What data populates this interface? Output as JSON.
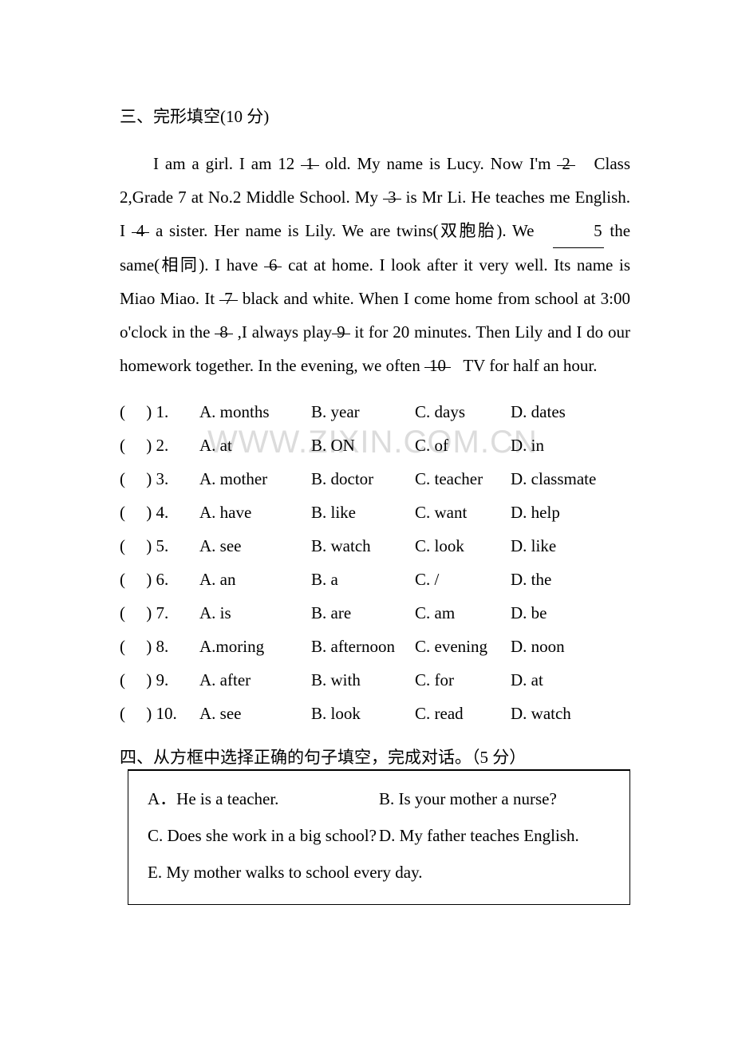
{
  "section3": {
    "title": "三、完形填空(10 分)",
    "passage": {
      "p1a": "I am a girl. I am 12 ",
      "b1": "1",
      "p1b": " old. My name is Lucy. Now I'm ",
      "b2": "2",
      "p1c": " Class 2,Grade 7 at No.2 Middle School. My ",
      "b3": "3",
      "p1d": " is Mr Li. He teaches me English. I ",
      "b4": "4",
      "p1e": " a sister. Her name is Lily. We are twins(双胞胎). We ",
      "b5": "5",
      "p1f": " the same(相同). I have ",
      "b6": "6",
      "p1g": " cat at home. I look after it very well. Its name is Miao Miao. It ",
      "b7": "7",
      "p1h": " black and white. When I come home from school at 3:00 o'clock in the ",
      "b8": "8",
      "p1i": " ,I always play",
      "b9": "9",
      "p1j": " it for 20 minutes. Then Lily and I do our homework together. In the evening, we often ",
      "b10": "10",
      "p1k": " TV for half an hour."
    },
    "options": [
      {
        "n": "1",
        "a": "A. months",
        "b": "B. year",
        "c": "C. days",
        "d": "D. dates"
      },
      {
        "n": "2",
        "a": "A. at",
        "b": "B. ON",
        "c": "C. of",
        "d": "D. in"
      },
      {
        "n": "3",
        "a": "A. mother",
        "b": "B. doctor",
        "c": "C. teacher",
        "d": "D. classmate"
      },
      {
        "n": "4",
        "a": "A. have",
        "b": "B. like",
        "c": "C. want",
        "d": "D. help"
      },
      {
        "n": "5",
        "a": "A. see",
        "b": "B. watch",
        "c": "C. look",
        "d": "D. like"
      },
      {
        "n": "6",
        "a": "A. an",
        "b": "B. a",
        "c": "C. /",
        "d": "D. the"
      },
      {
        "n": "7",
        "a": "A. is",
        "b": "B. are",
        "c": "C. am",
        "d": "D. be"
      },
      {
        "n": "8",
        "a": "A.moring",
        "b": "B. afternoon",
        "c": "C. evening",
        "d": "D. noon"
      },
      {
        "n": "9",
        "a": "A. after",
        "b": "B. with",
        "c": "C. for",
        "d": "D. at"
      },
      {
        "n": "10",
        "a": "A. see",
        "b": "B. look",
        "c": "C. read",
        "d": "D. watch"
      }
    ]
  },
  "section4": {
    "title": "四、从方框中选择正确的句子填空，完成对话。（5 分）",
    "box": {
      "a": "A．He is a teacher.",
      "b": "B. Is your mother a nurse?",
      "c": "C. Does she work in a big school?",
      "d": "D. My father teaches English.",
      "e": "E. My mother walks to school every day."
    }
  },
  "watermark": "WWW.ZIXIN.COM.CN",
  "paren_open": "(",
  "paren_close": ") ",
  "nine_prefix": " "
}
